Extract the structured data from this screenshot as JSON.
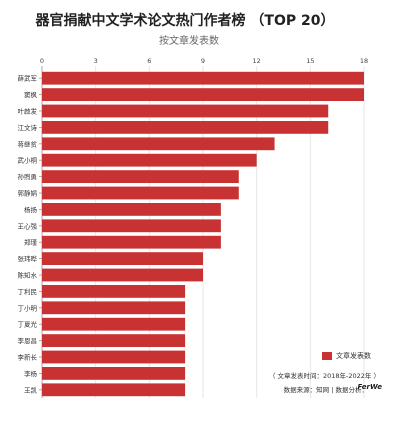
{
  "chart_data": {
    "type": "bar",
    "orientation": "horizontal",
    "title": "器官捐献中文学术论文热门作者榜 （TOP 20）",
    "subtitle": "按文章发表数",
    "categories": [
      "薛武军",
      "窦枫",
      "叶啟发",
      "江文诗",
      "蒋继贫",
      "武小桐",
      "孙煦勇",
      "郭静娟",
      "杨扬",
      "王心强",
      "郑瑾",
      "张玮晔",
      "陈知水",
      "丁利民",
      "丁小明",
      "丁夏光",
      "李恩昌",
      "李新长",
      "李杨",
      "王凯"
    ],
    "series": [
      {
        "name": "文章发表数",
        "values": [
          18,
          18,
          16,
          16,
          13,
          12,
          11,
          11,
          10,
          10,
          10,
          9,
          9,
          8,
          8,
          8,
          8,
          8,
          8,
          8
        ]
      }
    ],
    "xlim": [
      0,
      18
    ],
    "xticks": [
      0,
      3,
      6,
      9,
      12,
      15,
      18
    ],
    "grid": true,
    "legend_position": "bottom-right",
    "bar_color": "#c83232"
  },
  "notes": {
    "time_range": "（ 文章发表时间：2018年-2022年 ）",
    "source": "数据来源：知网 | 数据分析：",
    "brand": "FerWe"
  }
}
